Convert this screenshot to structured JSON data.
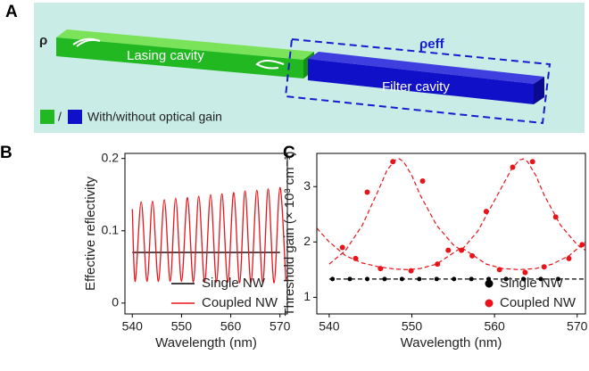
{
  "diagram": {
    "label": "A",
    "rho": "ρ",
    "rho_eff": "ρeff",
    "lasing": "Lasing cavity",
    "filter": "Filter cavity",
    "slash": "/",
    "gain_legend": "With/without  optical gain"
  },
  "chart_data": [
    {
      "type": "line",
      "label": "B",
      "xlabel": "Wavelength (nm)",
      "ylabel": "Effective reflectivity",
      "xlim": [
        538.5,
        571.5
      ],
      "ylim": [
        -0.015,
        0.207
      ],
      "xticks": [
        540,
        550,
        560,
        570
      ],
      "yticks": [
        0,
        0.1,
        0.2
      ],
      "legend": "lower right",
      "series": [
        {
          "name": "Single NW",
          "color": "#000000",
          "style": "line",
          "x": [
            540,
            570
          ],
          "values": [
            0.07,
            0.07
          ]
        },
        {
          "name": "Coupled NW",
          "color": "#e8141a",
          "style": "smooth",
          "x": [
            540,
            540.6,
            541.8,
            543.0,
            544.1,
            545.3,
            546.5,
            547.7,
            548.8,
            550.0,
            551.2,
            552.4,
            553.5,
            554.7,
            555.9,
            557.1,
            558.2,
            559.4,
            560.6,
            561.8,
            562.9,
            564.1,
            565.3,
            566.5,
            567.6,
            568.8,
            570.0,
            571.2
          ],
          "values": [
            0.13,
            0.03,
            0.14,
            0.03,
            0.141,
            0.03,
            0.143,
            0.03,
            0.145,
            0.03,
            0.146,
            0.029,
            0.148,
            0.029,
            0.15,
            0.029,
            0.151,
            0.029,
            0.153,
            0.028,
            0.155,
            0.028,
            0.156,
            0.028,
            0.158,
            0.028,
            0.16,
            0.03
          ]
        }
      ]
    },
    {
      "type": "scatter",
      "label": "C",
      "xlabel": "Wavelength (nm)",
      "ylabel": "Threshold gain (× 10³ cm⁻¹)",
      "xlim": [
        538.5,
        571
      ],
      "ylim": [
        0.7,
        3.6
      ],
      "xticks": [
        540,
        550,
        560,
        570
      ],
      "yticks": [
        1,
        2,
        3
      ],
      "legend": "lower right",
      "series": [
        {
          "color": "#000000",
          "style": "dashed",
          "x": [
            540,
            571
          ],
          "values": [
            1.33,
            1.33
          ]
        },
        {
          "color": "#e8141a",
          "style": "dashed",
          "x": [
            540,
            542,
            544,
            546,
            547,
            548,
            548.5,
            549,
            550,
            551,
            553,
            555,
            556,
            558,
            560,
            562,
            563,
            563.5,
            564,
            565,
            566,
            568,
            570,
            571
          ],
          "values": [
            1.6,
            1.85,
            2.3,
            2.95,
            3.3,
            3.48,
            3.5,
            3.45,
            3.2,
            2.85,
            2.3,
            1.95,
            1.85,
            2.2,
            2.75,
            3.3,
            3.48,
            3.5,
            3.45,
            3.2,
            2.85,
            2.3,
            1.95,
            1.85
          ]
        },
        {
          "color": "#e8141a",
          "style": "dashed",
          "x": [
            538.5,
            540,
            542,
            544,
            546,
            548,
            549.5,
            551,
            553,
            555,
            556,
            557,
            559,
            561,
            563,
            565,
            567,
            569,
            571
          ],
          "values": [
            2.25,
            2.0,
            1.75,
            1.62,
            1.55,
            1.51,
            1.5,
            1.52,
            1.6,
            1.8,
            1.9,
            1.8,
            1.6,
            1.52,
            1.5,
            1.52,
            1.6,
            1.75,
            2.0
          ]
        },
        {
          "name": "Single NW",
          "color": "#000000",
          "style": "markers",
          "size": 2.5,
          "x": [
            540.4,
            542.5,
            544.6,
            546.7,
            548.8,
            550.9,
            553.0,
            555.1,
            557.2,
            559.3,
            561.4,
            563.5,
            565.6,
            567.7
          ],
          "values": [
            1.33,
            1.33,
            1.33,
            1.33,
            1.33,
            1.33,
            1.33,
            1.33,
            1.33,
            1.33,
            1.33,
            1.33,
            1.33,
            1.33
          ]
        },
        {
          "name": "Coupled NW",
          "color": "#e8141a",
          "style": "markers",
          "size": 3,
          "x": [
            541.6,
            543.2,
            544.6,
            546.2,
            547.7,
            549.9,
            551.3,
            553.1,
            554.4,
            556.0,
            557.3,
            559.0,
            560.6,
            562.2,
            563.7,
            564.6,
            566.0,
            567.4,
            569.0,
            570.6
          ],
          "values": [
            1.9,
            1.7,
            2.9,
            1.52,
            3.45,
            1.48,
            3.1,
            1.6,
            1.85,
            1.85,
            1.75,
            2.55,
            1.5,
            3.35,
            1.45,
            3.45,
            1.55,
            2.45,
            1.7,
            1.95
          ]
        }
      ]
    }
  ]
}
